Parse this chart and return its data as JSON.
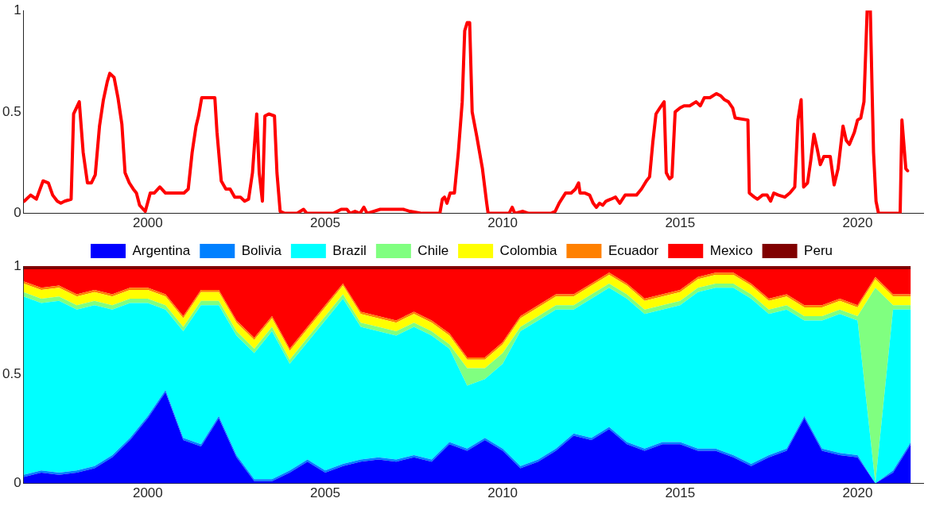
{
  "chart_data": [
    {
      "type": "line",
      "xlim": [
        1996.5,
        2021.85
      ],
      "xticks": [
        2000,
        2005,
        2010,
        2015,
        2020
      ],
      "ylim": [
        0,
        1
      ],
      "yticks": [
        0,
        0.5,
        1
      ],
      "grid": false,
      "legend": false,
      "x": [
        1996.52,
        1996.7,
        1996.86,
        1997.05,
        1997.2,
        1997.32,
        1997.45,
        1997.55,
        1997.66,
        1997.84,
        1997.91,
        1998.07,
        1998.18,
        1998.3,
        1998.41,
        1998.52,
        1998.64,
        1998.75,
        1998.86,
        1998.93,
        1999.05,
        1999.16,
        1999.27,
        1999.36,
        1999.48,
        1999.59,
        1999.68,
        1999.77,
        1999.93,
        2000.07,
        2000.18,
        2000.34,
        2000.5,
        2001.02,
        2001.14,
        2001.25,
        2001.36,
        2001.43,
        2001.52,
        2001.75,
        2001.89,
        2001.95,
        2002.07,
        2002.2,
        2002.32,
        2002.45,
        2002.61,
        2002.73,
        2002.84,
        2002.95,
        2003.07,
        2003.14,
        2003.23,
        2003.3,
        2003.41,
        2003.57,
        2003.64,
        2003.73,
        2003.86,
        2004.2,
        2004.39,
        2004.48,
        2005.0,
        2005.23,
        2005.45,
        2005.61,
        2005.7,
        2005.84,
        2005.98,
        2006.09,
        2006.18,
        2006.36,
        2006.55,
        2007.2,
        2007.39,
        2007.73,
        2008.23,
        2008.3,
        2008.36,
        2008.43,
        2008.52,
        2008.64,
        2008.75,
        2008.86,
        2008.93,
        2009.0,
        2009.07,
        2009.14,
        2009.27,
        2009.43,
        2009.55,
        2009.59,
        2010.18,
        2010.27,
        2010.34,
        2010.57,
        2010.73,
        2011.36,
        2011.48,
        2011.59,
        2011.77,
        2011.93,
        2012.05,
        2012.14,
        2012.18,
        2012.32,
        2012.45,
        2012.55,
        2012.64,
        2012.73,
        2012.82,
        2012.91,
        2013.05,
        2013.18,
        2013.3,
        2013.45,
        2013.77,
        2013.91,
        2014.05,
        2014.14,
        2014.23,
        2014.32,
        2014.43,
        2014.55,
        2014.61,
        2014.7,
        2014.77,
        2014.86,
        2015.0,
        2015.11,
        2015.27,
        2015.45,
        2015.57,
        2015.68,
        2015.84,
        2016.02,
        2016.14,
        2016.25,
        2016.36,
        2016.48,
        2016.55,
        2016.91,
        2016.95,
        2017.09,
        2017.18,
        2017.32,
        2017.45,
        2017.55,
        2017.64,
        2017.77,
        2017.95,
        2018.09,
        2018.23,
        2018.32,
        2018.41,
        2018.48,
        2018.59,
        2018.68,
        2018.77,
        2018.86,
        2018.95,
        2019.05,
        2019.23,
        2019.34,
        2019.45,
        2019.59,
        2019.68,
        2019.77,
        2019.91,
        2020.0,
        2020.09,
        2020.18,
        2020.27,
        2020.36,
        2020.41,
        2020.45,
        2020.52,
        2020.59,
        2021.2,
        2021.25,
        2021.36,
        2021.41
      ],
      "series": [
        {
          "color": "#ff0000",
          "values": [
            0.06,
            0.09,
            0.07,
            0.16,
            0.15,
            0.09,
            0.06,
            0.05,
            0.06,
            0.07,
            0.49,
            0.55,
            0.3,
            0.15,
            0.15,
            0.19,
            0.43,
            0.56,
            0.65,
            0.69,
            0.67,
            0.57,
            0.44,
            0.2,
            0.15,
            0.12,
            0.1,
            0.04,
            0.01,
            0.1,
            0.1,
            0.13,
            0.1,
            0.1,
            0.12,
            0.3,
            0.43,
            0.48,
            0.57,
            0.57,
            0.57,
            0.4,
            0.16,
            0.12,
            0.12,
            0.08,
            0.08,
            0.06,
            0.07,
            0.2,
            0.49,
            0.2,
            0.06,
            0.48,
            0.49,
            0.48,
            0.2,
            0.01,
            0,
            0,
            0.02,
            0,
            0,
            0,
            0.02,
            0.02,
            0,
            0.01,
            0,
            0.03,
            0,
            0.01,
            0.02,
            0.02,
            0.01,
            0,
            0,
            0.07,
            0.08,
            0.05,
            0.1,
            0.1,
            0.3,
            0.55,
            0.9,
            0.94,
            0.94,
            0.5,
            0.38,
            0.22,
            0.05,
            0,
            0,
            0.03,
            0,
            0.01,
            0,
            0,
            0.01,
            0.05,
            0.1,
            0.1,
            0.12,
            0.15,
            0.1,
            0.1,
            0.09,
            0.05,
            0.03,
            0.05,
            0.04,
            0.06,
            0.07,
            0.08,
            0.05,
            0.09,
            0.09,
            0.12,
            0.16,
            0.18,
            0.35,
            0.49,
            0.52,
            0.55,
            0.2,
            0.17,
            0.18,
            0.5,
            0.52,
            0.53,
            0.53,
            0.55,
            0.53,
            0.57,
            0.57,
            0.59,
            0.58,
            0.56,
            0.55,
            0.52,
            0.47,
            0.46,
            0.1,
            0.08,
            0.07,
            0.09,
            0.09,
            0.06,
            0.1,
            0.09,
            0.08,
            0.1,
            0.13,
            0.46,
            0.56,
            0.13,
            0.15,
            0.26,
            0.39,
            0.32,
            0.24,
            0.28,
            0.28,
            0.14,
            0.22,
            0.43,
            0.36,
            0.34,
            0.4,
            0.46,
            0.47,
            0.55,
            1.0,
            1.0,
            0.6,
            0.3,
            0.06,
            0,
            0,
            0.46,
            0.22,
            0.21
          ]
        }
      ]
    },
    {
      "type": "area",
      "stacked": true,
      "xlim": [
        1996.5,
        2021.85
      ],
      "xticks": [
        2000,
        2005,
        2010,
        2015,
        2020
      ],
      "ylim": [
        0,
        1
      ],
      "yticks": [
        0,
        0.5,
        1
      ],
      "grid": false,
      "legend": "top",
      "x": [
        1996.5,
        1997,
        1997.5,
        1998,
        1998.5,
        1999,
        1999.5,
        2000,
        2000.5,
        2001,
        2001.5,
        2002,
        2002.5,
        2003,
        2003.5,
        2004,
        2004.5,
        2005,
        2005.5,
        2006,
        2006.5,
        2007,
        2007.5,
        2008,
        2008.5,
        2009,
        2009.5,
        2010,
        2010.5,
        2011,
        2011.5,
        2012,
        2012.5,
        2013,
        2013.5,
        2014,
        2014.5,
        2015,
        2015.5,
        2016,
        2016.5,
        2017,
        2017.5,
        2018,
        2018.5,
        2019,
        2019.5,
        2020,
        2020.5,
        2021,
        2021.5
      ],
      "series": [
        {
          "name": "Argentina",
          "color": "#0000ff",
          "values": [
            0.03,
            0.05,
            0.04,
            0.05,
            0.07,
            0.12,
            0.2,
            0.3,
            0.42,
            0.2,
            0.17,
            0.3,
            0.12,
            0.01,
            0.01,
            0.05,
            0.1,
            0.05,
            0.08,
            0.1,
            0.11,
            0.1,
            0.12,
            0.1,
            0.18,
            0.15,
            0.2,
            0.15,
            0.07,
            0.1,
            0.15,
            0.22,
            0.2,
            0.25,
            0.18,
            0.15,
            0.18,
            0.18,
            0.15,
            0.15,
            0.12,
            0.08,
            0.12,
            0.15,
            0.3,
            0.15,
            0.13,
            0.12,
            0,
            0.05,
            0.18
          ]
        },
        {
          "name": "Bolivia",
          "color": "#0080ff",
          "values": [
            0.01,
            0.01,
            0.01,
            0.01,
            0.01,
            0.01,
            0.01,
            0.01,
            0.01,
            0.01,
            0.01,
            0.01,
            0.01,
            0.01,
            0.01,
            0.01,
            0.01,
            0.01,
            0.01,
            0.01,
            0.01,
            0.01,
            0.01,
            0.01,
            0.01,
            0.01,
            0.01,
            0.01,
            0.01,
            0.01,
            0.01,
            0.01,
            0.01,
            0.01,
            0.01,
            0.01,
            0.01,
            0.01,
            0.01,
            0.01,
            0.01,
            0.01,
            0.01,
            0.01,
            0.01,
            0.01,
            0.01,
            0.01,
            0,
            0.01,
            0.01
          ]
        },
        {
          "name": "Brazil",
          "color": "#00ffff",
          "values": [
            0.82,
            0.77,
            0.79,
            0.74,
            0.74,
            0.67,
            0.62,
            0.52,
            0.37,
            0.49,
            0.64,
            0.51,
            0.55,
            0.58,
            0.68,
            0.49,
            0.54,
            0.69,
            0.76,
            0.61,
            0.58,
            0.57,
            0.59,
            0.57,
            0.43,
            0.29,
            0.27,
            0.39,
            0.62,
            0.64,
            0.64,
            0.57,
            0.64,
            0.64,
            0.66,
            0.62,
            0.61,
            0.63,
            0.72,
            0.74,
            0.77,
            0.76,
            0.65,
            0.64,
            0.44,
            0.59,
            0.64,
            0.62,
            0,
            0.74,
            0.61
          ]
        },
        {
          "name": "Chile",
          "color": "#80ff80",
          "values": [
            0.02,
            0.02,
            0.02,
            0.02,
            0.02,
            0.02,
            0.02,
            0.02,
            0.02,
            0.02,
            0.02,
            0.02,
            0.02,
            0.02,
            0.02,
            0.02,
            0.02,
            0.02,
            0.02,
            0.02,
            0.02,
            0.02,
            0.02,
            0.02,
            0.02,
            0.08,
            0.05,
            0.05,
            0.02,
            0.02,
            0.02,
            0.02,
            0.02,
            0.02,
            0.02,
            0.02,
            0.02,
            0.02,
            0.02,
            0.02,
            0.02,
            0.02,
            0.02,
            0.02,
            0.02,
            0.02,
            0.02,
            0.02,
            0.9,
            0.02,
            0.02
          ]
        },
        {
          "name": "Colombia",
          "color": "#ffff00",
          "values": [
            0.04,
            0.04,
            0.04,
            0.04,
            0.04,
            0.04,
            0.04,
            0.04,
            0.04,
            0.04,
            0.04,
            0.04,
            0.04,
            0.04,
            0.04,
            0.04,
            0.04,
            0.04,
            0.04,
            0.04,
            0.04,
            0.04,
            0.04,
            0.04,
            0.04,
            0.04,
            0.04,
            0.04,
            0.04,
            0.04,
            0.04,
            0.04,
            0.04,
            0.04,
            0.04,
            0.04,
            0.04,
            0.04,
            0.04,
            0.04,
            0.04,
            0.04,
            0.04,
            0.04,
            0.04,
            0.04,
            0.04,
            0.04,
            0.04,
            0.04,
            0.04
          ]
        },
        {
          "name": "Ecuador",
          "color": "#ff8000",
          "values": [
            0.01,
            0.01,
            0.01,
            0.01,
            0.01,
            0.01,
            0.01,
            0.01,
            0.01,
            0.01,
            0.01,
            0.01,
            0.01,
            0.01,
            0.01,
            0.01,
            0.01,
            0.01,
            0.01,
            0.01,
            0.01,
            0.01,
            0.01,
            0.01,
            0.01,
            0.01,
            0.01,
            0.01,
            0.01,
            0.01,
            0.01,
            0.01,
            0.01,
            0.01,
            0.01,
            0.01,
            0.01,
            0.01,
            0.01,
            0.01,
            0.01,
            0.01,
            0.01,
            0.01,
            0.01,
            0.01,
            0.01,
            0.01,
            0.01,
            0.01,
            0.01
          ]
        },
        {
          "name": "Mexico",
          "color": "#ff0000",
          "values": [
            0.055,
            0.085,
            0.075,
            0.115,
            0.095,
            0.115,
            0.085,
            0.085,
            0.115,
            0.215,
            0.095,
            0.095,
            0.235,
            0.315,
            0.215,
            0.365,
            0.265,
            0.165,
            0.065,
            0.195,
            0.215,
            0.235,
            0.195,
            0.235,
            0.295,
            0.405,
            0.405,
            0.335,
            0.215,
            0.165,
            0.115,
            0.115,
            0.065,
            0.015,
            0.065,
            0.135,
            0.115,
            0.095,
            0.035,
            0.015,
            0.015,
            0.065,
            0.135,
            0.115,
            0.165,
            0.165,
            0.135,
            0.165,
            0.035,
            0.115,
            0.115
          ]
        },
        {
          "name": "Peru",
          "color": "#800000",
          "values": [
            0.015,
            0.015,
            0.015,
            0.015,
            0.015,
            0.015,
            0.015,
            0.015,
            0.015,
            0.015,
            0.015,
            0.015,
            0.015,
            0.015,
            0.015,
            0.015,
            0.015,
            0.015,
            0.015,
            0.015,
            0.015,
            0.015,
            0.015,
            0.015,
            0.015,
            0.015,
            0.015,
            0.015,
            0.015,
            0.015,
            0.015,
            0.015,
            0.015,
            0.015,
            0.015,
            0.015,
            0.015,
            0.015,
            0.015,
            0.015,
            0.015,
            0.015,
            0.015,
            0.015,
            0.015,
            0.015,
            0.015,
            0.015,
            0.015,
            0.015,
            0.015
          ]
        }
      ]
    }
  ]
}
